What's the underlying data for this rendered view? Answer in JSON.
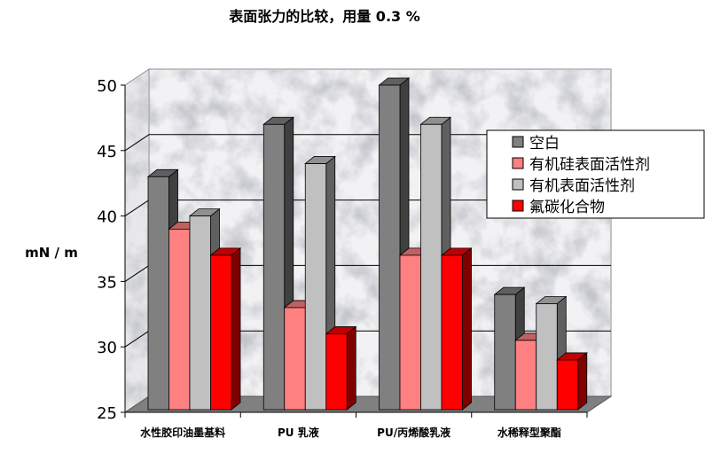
{
  "chart_data": {
    "type": "bar",
    "title": "表面张力的比较，用量 0.3 %",
    "ylabel": "mN / m",
    "xlabel": "",
    "ylim": [
      25,
      50
    ],
    "yticks": [
      25,
      30,
      35,
      40,
      45,
      50
    ],
    "categories": [
      "水性胶印油墨基料",
      "PU 乳液",
      "PU/丙烯酸乳液",
      "水稀释型聚酯"
    ],
    "legend_position": "right",
    "grid": true,
    "series": [
      {
        "name": "空白",
        "color": "#808080",
        "side": "#404040",
        "top": "#606060",
        "values": [
          43,
          47,
          50,
          34
        ]
      },
      {
        "name": "有机硅表面活性剂",
        "color": "#FF8080",
        "side": "#c06060",
        "top": "#c06060",
        "values": [
          39,
          33,
          37,
          30.5
        ]
      },
      {
        "name": "有机表面活性剂",
        "color": "#C0C0C0",
        "side": "#606060",
        "top": "#909090",
        "values": [
          40,
          44,
          47,
          33.3
        ]
      },
      {
        "name": "氟碳化合物",
        "color": "#FF0000",
        "side": "#800000",
        "top": "#c00000",
        "values": [
          37,
          31,
          37,
          29
        ]
      }
    ]
  }
}
